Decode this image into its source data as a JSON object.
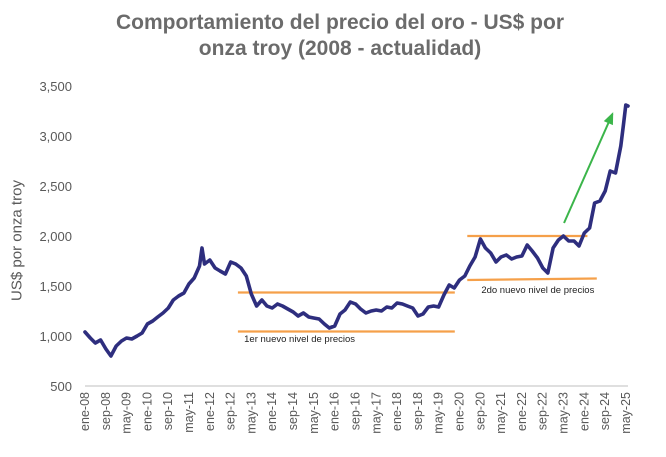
{
  "chart_data": {
    "type": "line",
    "title_line1": "Comportamiento del precio del oro - US$ por",
    "title_line2": "onza troy (2008 - actualidad)",
    "ylabel": "US$ por onza troy",
    "ylim": [
      500,
      3500
    ],
    "yticks": [
      "500",
      "1,000",
      "1,500",
      "2,000",
      "2,500",
      "3,000",
      "3,500"
    ],
    "xtick_labels": [
      "ene-08",
      "sep-08",
      "may-09",
      "ene-10",
      "sep-10",
      "may-11",
      "ene-12",
      "sep-12",
      "may-13",
      "ene-14",
      "sep-14",
      "may-15",
      "ene-16",
      "sep-16",
      "may-17",
      "ene-18",
      "sep-18",
      "may-19",
      "ene-20",
      "sep-20",
      "may-21",
      "ene-22",
      "sep-22",
      "may-23",
      "ene-24",
      "sep-24",
      "may-25"
    ],
    "series": [
      {
        "x": [
          2008.0,
          2008.17,
          2008.33,
          2008.5,
          2008.67,
          2008.83,
          2009.0,
          2009.17,
          2009.33,
          2009.5,
          2009.67,
          2009.83,
          2010.0,
          2010.17,
          2010.33,
          2010.5,
          2010.67,
          2010.83,
          2011.0,
          2011.17,
          2011.33,
          2011.5,
          2011.67,
          2011.75,
          2011.83,
          2012.0,
          2012.17,
          2012.33,
          2012.5,
          2012.67,
          2012.83,
          2013.0,
          2013.17,
          2013.33,
          2013.5,
          2013.67,
          2013.83,
          2014.0,
          2014.17,
          2014.33,
          2014.5,
          2014.67,
          2014.83,
          2015.0,
          2015.17,
          2015.33,
          2015.5,
          2015.67,
          2015.83,
          2016.0,
          2016.17,
          2016.33,
          2016.5,
          2016.67,
          2016.83,
          2017.0,
          2017.17,
          2017.33,
          2017.5,
          2017.67,
          2017.83,
          2018.0,
          2018.17,
          2018.33,
          2018.5,
          2018.67,
          2018.83,
          2019.0,
          2019.17,
          2019.33,
          2019.5,
          2019.67,
          2019.83,
          2020.0,
          2020.17,
          2020.33,
          2020.5,
          2020.67,
          2020.83,
          2021.0,
          2021.17,
          2021.33,
          2021.5,
          2021.67,
          2021.83,
          2022.0,
          2022.17,
          2022.33,
          2022.5,
          2022.67,
          2022.83,
          2023.0,
          2023.17,
          2023.33,
          2023.5,
          2023.67,
          2023.83,
          2024.0,
          2024.17,
          2024.33,
          2024.5,
          2024.67,
          2024.83,
          2025.0,
          2025.17,
          2025.25,
          2025.33,
          2025.4
        ],
        "values": [
          1040,
          980,
          930,
          960,
          870,
          800,
          900,
          950,
          980,
          970,
          1000,
          1030,
          1120,
          1150,
          1190,
          1230,
          1280,
          1360,
          1400,
          1430,
          1520,
          1580,
          1700,
          1880,
          1720,
          1760,
          1680,
          1650,
          1620,
          1740,
          1720,
          1680,
          1600,
          1420,
          1300,
          1360,
          1300,
          1280,
          1320,
          1300,
          1270,
          1240,
          1200,
          1230,
          1190,
          1180,
          1170,
          1120,
          1080,
          1100,
          1220,
          1260,
          1340,
          1320,
          1270,
          1230,
          1250,
          1260,
          1250,
          1290,
          1280,
          1330,
          1320,
          1300,
          1280,
          1200,
          1220,
          1290,
          1300,
          1290,
          1410,
          1510,
          1480,
          1560,
          1600,
          1700,
          1790,
          1970,
          1880,
          1830,
          1740,
          1790,
          1810,
          1770,
          1790,
          1800,
          1910,
          1850,
          1780,
          1680,
          1630,
          1880,
          1960,
          2000,
          1950,
          1950,
          1900,
          2030,
          2080,
          2330,
          2350,
          2450,
          2650,
          2630,
          2900,
          3100,
          3310,
          3300
        ]
      }
    ],
    "annotations": [
      {
        "text": "1er nuevo nivel de precios"
      },
      {
        "text": "2do nuevo nivel de precios"
      }
    ],
    "colors": {
      "line": "#2e2e7e",
      "range_lines": "#f5a04a",
      "arrow": "#3bb54a"
    },
    "grid": false
  }
}
